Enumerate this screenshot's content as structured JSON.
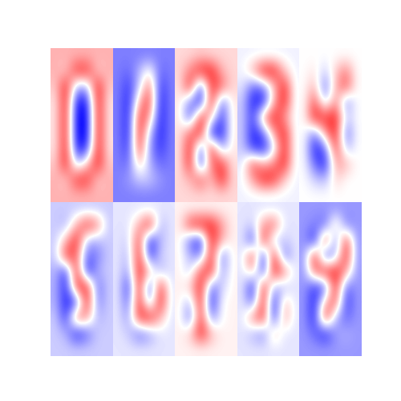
{
  "chart_data": [
    {
      "type": "heatmap",
      "tick_labels": false,
      "color_range": [
        -1,
        1
      ],
      "cells": [
        [
          0.3,
          0.3,
          0.3,
          0.3,
          0.3,
          0.3
        ],
        [
          0.3,
          0.2,
          0.8,
          0.8,
          0.2,
          0.3
        ],
        [
          0.2,
          0.9,
          -0.3,
          -0.3,
          0.9,
          0.2
        ],
        [
          0.1,
          0.9,
          -0.9,
          -0.9,
          0.9,
          0.1
        ],
        [
          0.1,
          0.9,
          -1.0,
          -1.0,
          0.9,
          0.1
        ],
        [
          0.1,
          0.9,
          -1.0,
          -1.0,
          0.9,
          0.1
        ],
        [
          0.1,
          0.9,
          -0.9,
          -0.8,
          0.9,
          0.1
        ],
        [
          0.2,
          0.9,
          -0.3,
          0.2,
          0.9,
          0.2
        ],
        [
          0.3,
          0.2,
          0.8,
          0.8,
          0.2,
          0.3
        ],
        [
          0.3,
          0.3,
          0.3,
          0.3,
          0.3,
          0.3
        ]
      ]
    },
    {
      "type": "heatmap",
      "tick_labels": false,
      "color_range": [
        -1,
        1
      ],
      "cells": [
        [
          -0.5,
          -0.5,
          -0.5,
          -0.5,
          -0.5,
          -0.5
        ],
        [
          -0.5,
          -0.6,
          -0.3,
          0.1,
          -0.6,
          -0.5
        ],
        [
          -0.5,
          -0.8,
          -0.2,
          0.6,
          -0.8,
          -0.5
        ],
        [
          -0.5,
          -0.9,
          0.3,
          0.8,
          -0.9,
          -0.5
        ],
        [
          -0.5,
          -0.9,
          0.8,
          0.4,
          -0.9,
          -0.5
        ],
        [
          -0.5,
          -0.9,
          0.9,
          -0.2,
          -0.9,
          -0.5
        ],
        [
          -0.5,
          -0.8,
          0.8,
          -0.4,
          -0.8,
          -0.5
        ],
        [
          -0.5,
          -0.6,
          0.3,
          -0.3,
          -0.6,
          -0.5
        ],
        [
          -0.5,
          -0.4,
          -0.2,
          -0.2,
          -0.4,
          -0.5
        ],
        [
          -0.5,
          -0.5,
          -0.5,
          -0.5,
          -0.5,
          -0.5
        ]
      ]
    },
    {
      "type": "heatmap",
      "tick_labels": false,
      "color_range": [
        -1,
        1
      ],
      "cells": [
        [
          0.15,
          0.15,
          0.2,
          0.15,
          0.15,
          0.15
        ],
        [
          0.15,
          0.5,
          0.9,
          0.9,
          0.3,
          0.15
        ],
        [
          0.1,
          0.9,
          -0.8,
          0.8,
          0.6,
          0.15
        ],
        [
          0.1,
          -0.5,
          -0.9,
          0.9,
          -0.6,
          0.1
        ],
        [
          0.1,
          -0.7,
          0.9,
          0.2,
          -0.8,
          0.1
        ],
        [
          0.1,
          0.6,
          0.9,
          -0.9,
          -0.9,
          0.1
        ],
        [
          0.1,
          0.9,
          -0.7,
          0.9,
          -0.4,
          0.1
        ],
        [
          0.1,
          0.9,
          -0.9,
          0.6,
          0.8,
          0.1
        ],
        [
          0.15,
          0.3,
          0.7,
          0.2,
          0.9,
          0.15
        ],
        [
          0.15,
          0.15,
          0.15,
          0.15,
          0.15,
          0.15
        ]
      ]
    },
    {
      "type": "heatmap",
      "tick_labels": false,
      "color_range": [
        -1,
        1
      ],
      "cells": [
        [
          -0.05,
          -0.05,
          -0.05,
          -0.05,
          -0.05,
          -0.05
        ],
        [
          -0.05,
          0.3,
          0.9,
          0.9,
          0.2,
          -0.05
        ],
        [
          -0.1,
          -0.6,
          -0.5,
          0.2,
          0.9,
          -0.05
        ],
        [
          -0.2,
          -0.9,
          -0.9,
          0.3,
          0.9,
          -0.05
        ],
        [
          -0.2,
          -0.8,
          0.5,
          0.9,
          0.4,
          -0.05
        ],
        [
          -0.2,
          -0.9,
          -0.6,
          0.4,
          0.9,
          -0.05
        ],
        [
          -0.2,
          -0.8,
          -0.9,
          -0.2,
          0.9,
          -0.05
        ],
        [
          -0.1,
          0.7,
          0.3,
          0.5,
          0.9,
          -0.05
        ],
        [
          -0.05,
          0.4,
          0.9,
          0.8,
          0.2,
          -0.05
        ],
        [
          -0.05,
          -0.05,
          -0.05,
          -0.05,
          -0.05,
          -0.05
        ]
      ]
    },
    {
      "type": "heatmap",
      "tick_labels": false,
      "color_range": [
        -1,
        1
      ],
      "cells": [
        [
          0.0,
          0.0,
          0.0,
          0.0,
          0.0,
          0.0
        ],
        [
          0.0,
          0.1,
          -0.2,
          0.2,
          0.5,
          0.0
        ],
        [
          0.0,
          0.3,
          -0.6,
          0.3,
          0.7,
          0.0
        ],
        [
          0.0,
          0.7,
          -0.3,
          0.5,
          -0.5,
          0.0
        ],
        [
          0.0,
          0.9,
          0.8,
          0.9,
          -0.2,
          0.0
        ],
        [
          0.0,
          -0.5,
          0.4,
          0.9,
          -0.6,
          0.0
        ],
        [
          0.0,
          -0.9,
          -0.6,
          0.8,
          -0.3,
          0.0
        ],
        [
          0.0,
          -0.6,
          -0.9,
          0.4,
          0.3,
          0.0
        ],
        [
          0.0,
          -0.2,
          -0.3,
          0.2,
          0.0,
          0.0
        ],
        [
          0.0,
          0.0,
          0.0,
          0.0,
          0.0,
          0.0
        ]
      ]
    },
    {
      "type": "heatmap",
      "tick_labels": false,
      "color_range": [
        -1,
        1
      ],
      "cells": [
        [
          -0.2,
          -0.2,
          -0.2,
          -0.2,
          -0.2,
          -0.2
        ],
        [
          -0.2,
          -0.3,
          0.3,
          0.8,
          0.5,
          -0.2
        ],
        [
          -0.2,
          0.3,
          0.9,
          -0.3,
          -0.3,
          -0.2
        ],
        [
          -0.2,
          0.8,
          0.6,
          -0.6,
          -0.5,
          -0.2
        ],
        [
          -0.3,
          -0.8,
          0.9,
          -0.9,
          -0.3,
          -0.2
        ],
        [
          -0.3,
          -0.9,
          0.8,
          0.9,
          -0.6,
          -0.2
        ],
        [
          -0.3,
          -0.9,
          -0.8,
          0.9,
          -0.5,
          -0.2
        ],
        [
          -0.2,
          -0.8,
          0.7,
          0.4,
          -0.3,
          -0.2
        ],
        [
          -0.2,
          -0.3,
          -0.9,
          -0.6,
          -0.2,
          -0.2
        ],
        [
          -0.2,
          -0.2,
          -0.2,
          -0.2,
          -0.2,
          -0.2
        ]
      ]
    },
    {
      "type": "heatmap",
      "tick_labels": false,
      "color_range": [
        -1,
        1
      ],
      "cells": [
        [
          -0.1,
          -0.1,
          -0.1,
          -0.1,
          -0.1,
          -0.1
        ],
        [
          -0.1,
          -0.1,
          0.3,
          0.9,
          -0.3,
          -0.1
        ],
        [
          -0.1,
          -0.2,
          0.8,
          -0.9,
          -0.3,
          -0.1
        ],
        [
          -0.1,
          -0.3,
          0.9,
          -0.8,
          -0.2,
          -0.1
        ],
        [
          -0.1,
          -0.4,
          0.9,
          0.3,
          -0.3,
          -0.1
        ],
        [
          -0.1,
          -0.8,
          0.9,
          -0.8,
          0.8,
          -0.1
        ],
        [
          -0.1,
          -0.6,
          0.9,
          -0.5,
          0.9,
          -0.1
        ],
        [
          -0.1,
          -0.4,
          0.8,
          0.9,
          0.3,
          -0.1
        ],
        [
          -0.1,
          -0.2,
          -0.6,
          -0.4,
          -0.1,
          -0.1
        ],
        [
          -0.1,
          -0.1,
          -0.1,
          -0.1,
          -0.1,
          -0.1
        ]
      ]
    },
    {
      "type": "heatmap",
      "tick_labels": false,
      "color_range": [
        -1,
        1
      ],
      "cells": [
        [
          0.05,
          0.05,
          0.05,
          0.05,
          0.05,
          0.05
        ],
        [
          0.05,
          0.8,
          0.9,
          0.9,
          0.4,
          0.05
        ],
        [
          0.05,
          -0.6,
          -0.9,
          0.9,
          0.3,
          0.05
        ],
        [
          0.05,
          -0.3,
          -0.5,
          0.9,
          -0.6,
          0.05
        ],
        [
          0.05,
          -0.2,
          0.7,
          0.8,
          -0.4,
          0.05
        ],
        [
          0.05,
          0.2,
          0.9,
          -0.6,
          -0.2,
          0.05
        ],
        [
          0.05,
          -0.3,
          0.9,
          -0.9,
          0.0,
          0.05
        ],
        [
          0.05,
          -0.6,
          0.8,
          -0.5,
          0.0,
          0.05
        ],
        [
          0.05,
          0.2,
          0.9,
          0.3,
          0.05,
          0.05
        ],
        [
          0.05,
          0.05,
          0.05,
          0.05,
          0.05,
          0.05
        ]
      ]
    },
    {
      "type": "heatmap",
      "tick_labels": false,
      "color_range": [
        -1,
        1
      ],
      "cells": [
        [
          -0.1,
          -0.1,
          -0.1,
          -0.1,
          -0.1,
          -0.1
        ],
        [
          -0.1,
          -0.2,
          0.4,
          0.6,
          -0.1,
          -0.1
        ],
        [
          -0.1,
          -0.8,
          0.9,
          -0.3,
          -0.2,
          -0.1
        ],
        [
          -0.1,
          0.8,
          -0.9,
          0.9,
          -0.6,
          -0.1
        ],
        [
          -0.1,
          0.3,
          -0.8,
          0.9,
          0.5,
          -0.1
        ],
        [
          -0.1,
          -0.9,
          0.9,
          -0.3,
          -0.3,
          -0.1
        ],
        [
          -0.1,
          -0.6,
          0.9,
          -0.9,
          0.3,
          -0.1
        ],
        [
          -0.1,
          0.5,
          0.8,
          -0.8,
          0.4,
          -0.1
        ],
        [
          -0.1,
          -0.3,
          -0.5,
          0.3,
          -0.1,
          -0.1
        ],
        [
          -0.1,
          -0.1,
          -0.1,
          -0.1,
          -0.1,
          -0.1
        ]
      ]
    },
    {
      "type": "heatmap",
      "tick_labels": false,
      "color_range": [
        -1,
        1
      ],
      "cells": [
        [
          -0.4,
          -0.4,
          -0.4,
          -0.4,
          -0.4,
          -0.4
        ],
        [
          -0.4,
          -0.5,
          -0.6,
          0.3,
          -0.5,
          -0.4
        ],
        [
          -0.4,
          -0.9,
          0.9,
          -0.6,
          0.8,
          -0.4
        ],
        [
          -0.4,
          0.9,
          -0.8,
          -0.3,
          0.9,
          -0.4
        ],
        [
          -0.4,
          0.6,
          0.9,
          0.9,
          0.4,
          -0.4
        ],
        [
          -0.4,
          -0.8,
          -0.7,
          0.9,
          -0.6,
          -0.4
        ],
        [
          -0.4,
          -0.9,
          0.3,
          0.7,
          -0.8,
          -0.4
        ],
        [
          -0.4,
          -0.9,
          0.9,
          -0.3,
          -0.6,
          -0.4
        ],
        [
          -0.4,
          -0.6,
          -0.9,
          -0.4,
          -0.3,
          -0.4
        ],
        [
          -0.4,
          -0.4,
          -0.4,
          -0.4,
          -0.4,
          -0.4
        ]
      ]
    }
  ]
}
